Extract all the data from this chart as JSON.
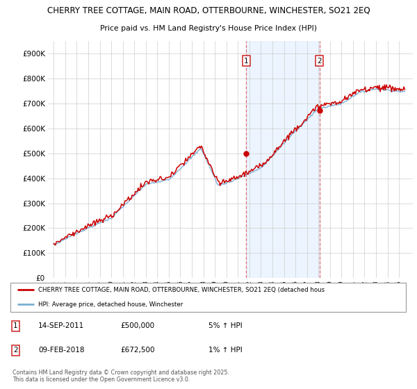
{
  "title_line1": "CHERRY TREE COTTAGE, MAIN ROAD, OTTERBOURNE, WINCHESTER, SO21 2EQ",
  "title_line2": "Price paid vs. HM Land Registry's House Price Index (HPI)",
  "y_ticks": [
    0,
    100000,
    200000,
    300000,
    400000,
    500000,
    600000,
    700000,
    800000,
    900000
  ],
  "y_tick_labels": [
    "£0",
    "£100K",
    "£200K",
    "£300K",
    "£400K",
    "£500K",
    "£600K",
    "£700K",
    "£800K",
    "£900K"
  ],
  "ylim": [
    0,
    950000
  ],
  "background_color": "#ffffff",
  "plot_bg_color": "#ffffff",
  "grid_color": "#cccccc",
  "hpi_line_color": "#7bafd4",
  "price_line_color": "#cc0000",
  "marker1_year": 2011.72,
  "marker1_price": 500000,
  "marker2_year": 2018.1,
  "marker2_price": 672500,
  "annotation1_date": "14-SEP-2011",
  "annotation1_price": "£500,000",
  "annotation1_hpi": "5% ↑ HPI",
  "annotation2_date": "09-FEB-2018",
  "annotation2_price": "£672,500",
  "annotation2_hpi": "1% ↑ HPI",
  "legend_line1": "CHERRY TREE COTTAGE, MAIN ROAD, OTTERBOURNE, WINCHESTER, SO21 2EQ (detached hous",
  "legend_line2": "HPI: Average price, detached house, Winchester",
  "footnote": "Contains HM Land Registry data © Crown copyright and database right 2025.\nThis data is licensed under the Open Government Licence v3.0.",
  "shaded_color": "#ddeeff"
}
